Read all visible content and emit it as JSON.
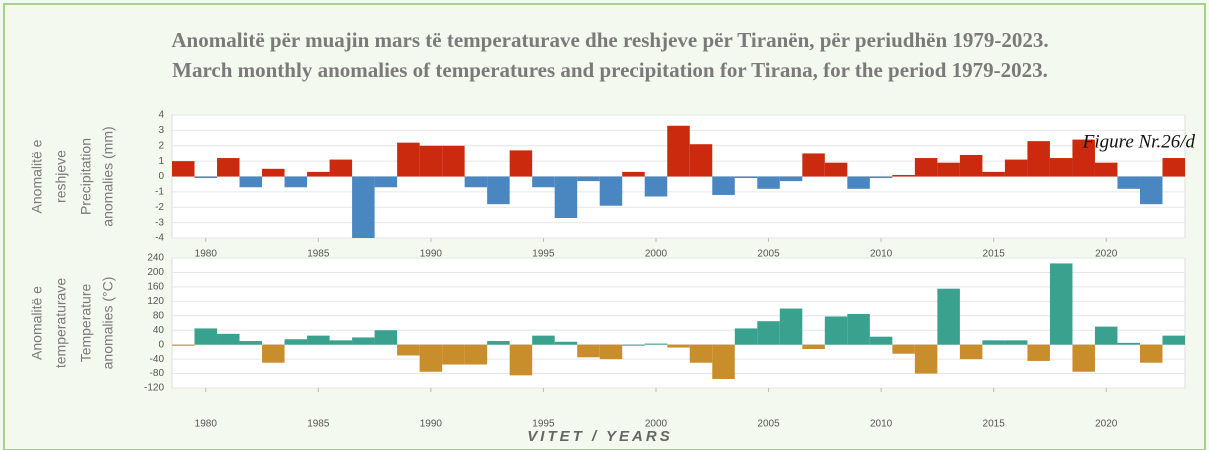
{
  "title": [
    "Anomalitë për muajin mars të temperaturave dhe reshjeve për Tiranën, për periudhën 1979-2023.",
    "March monthly anomalies of temperatures and precipitation for Tirana, for the period 1979-2023."
  ],
  "figure_label": "Figure Nr.26/d",
  "x_label": "VITET / YEARS",
  "chart_data": [
    {
      "type": "bar",
      "y_label": [
        "Anomalitë e",
        "reshjeve",
        "Precipitation",
        "anomalies (mm)"
      ],
      "x": [
        1979,
        1980,
        1981,
        1982,
        1983,
        1984,
        1985,
        1986,
        1987,
        1988,
        1989,
        1990,
        1991,
        1992,
        1993,
        1994,
        1995,
        1996,
        1997,
        1998,
        1999,
        2000,
        2001,
        2002,
        2003,
        2004,
        2005,
        2006,
        2007,
        2008,
        2009,
        2010,
        2011,
        2012,
        2013,
        2014,
        2015,
        2016,
        2017,
        2018,
        2019,
        2020,
        2021,
        2022,
        2023
      ],
      "values": [
        1.0,
        -0.1,
        1.2,
        -0.7,
        0.5,
        -0.7,
        0.3,
        1.1,
        -4.0,
        -0.7,
        2.2,
        2.0,
        2.0,
        -0.7,
        -1.8,
        1.7,
        -0.7,
        -2.7,
        -0.3,
        -1.9,
        0.3,
        -1.3,
        3.3,
        2.1,
        -1.2,
        -0.1,
        -0.8,
        -0.3,
        1.5,
        0.9,
        -0.8,
        -0.1,
        0.1,
        1.2,
        0.9,
        1.4,
        0.3,
        1.1,
        2.3,
        1.2,
        2.4,
        0.9,
        -0.8,
        -1.8,
        1.2
      ],
      "positive_color": "#cc2a0f",
      "negative_color": "#4a86c0",
      "xlim": [
        1978.5,
        2023.5
      ],
      "xticks": [
        1980,
        1985,
        1990,
        1995,
        2000,
        2005,
        2010,
        2015,
        2020
      ],
      "ylim": [
        -4,
        4
      ],
      "yticks": [
        4,
        3,
        2,
        1,
        0,
        -1,
        -2,
        -3,
        -4
      ],
      "grid": true
    },
    {
      "type": "bar",
      "y_label": [
        "Anomalitë e",
        "temperaturave",
        "Temperature",
        "anomalies (°C)"
      ],
      "x": [
        1979,
        1980,
        1981,
        1982,
        1983,
        1984,
        1985,
        1986,
        1987,
        1988,
        1989,
        1990,
        1991,
        1992,
        1993,
        1994,
        1995,
        1996,
        1997,
        1998,
        1999,
        2000,
        2001,
        2002,
        2003,
        2004,
        2005,
        2006,
        2007,
        2008,
        2009,
        2010,
        2011,
        2012,
        2013,
        2014,
        2015,
        2016,
        2017,
        2018,
        2019,
        2020,
        2021,
        2022,
        2023
      ],
      "values": [
        -3,
        45,
        30,
        10,
        -50,
        15,
        25,
        12,
        20,
        40,
        -30,
        -75,
        -55,
        -55,
        10,
        -85,
        25,
        8,
        -35,
        -40,
        0,
        3,
        -8,
        -50,
        -95,
        45,
        65,
        100,
        -12,
        78,
        85,
        22,
        -25,
        -80,
        155,
        -40,
        12,
        12,
        -45,
        225,
        -75,
        50,
        5,
        -50,
        25
      ],
      "positive_color": "#3aa18f",
      "negative_color": "#c98e2c",
      "xlim": [
        1978.5,
        2023.5
      ],
      "xticks": [
        1980,
        1985,
        1990,
        1995,
        2000,
        2005,
        2010,
        2015,
        2020
      ],
      "ylim": [
        -120,
        240
      ],
      "yticks": [
        240,
        200,
        160,
        120,
        80,
        40,
        0,
        -40,
        -80,
        -120
      ],
      "grid": true
    }
  ]
}
